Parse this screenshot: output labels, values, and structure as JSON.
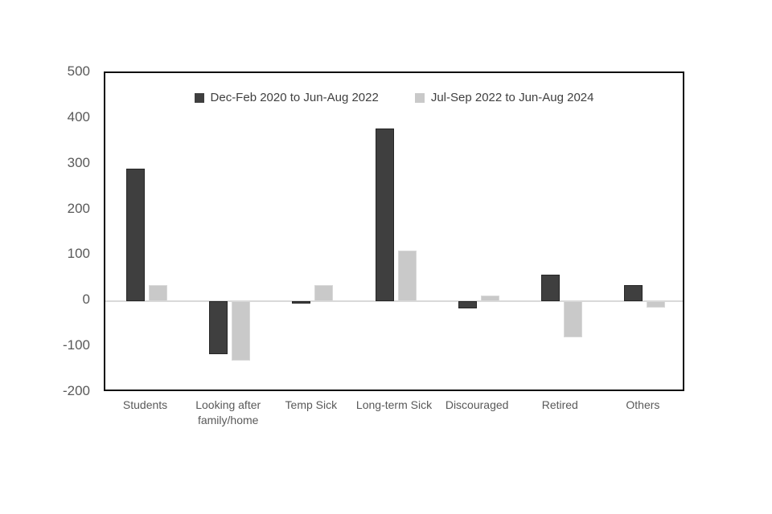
{
  "chart_data": {
    "type": "bar",
    "title": "",
    "xlabel": "",
    "ylabel": "",
    "categories": [
      "Students",
      "Looking after family/home",
      "Temp Sick",
      "Long-term Sick",
      "Discouraged",
      "Retired",
      "Others"
    ],
    "series": [
      {
        "name": "Dec-Feb 2020 to Jun-Aug 2022",
        "color": "#3f3f3f",
        "values": [
          290,
          -115,
          -5,
          378,
          -15,
          58,
          35
        ]
      },
      {
        "name": "Jul-Sep 2022 to Jun-Aug 2024",
        "color": "#c9c9c9",
        "values": [
          35,
          -130,
          35,
          112,
          12,
          -78,
          -13
        ]
      }
    ],
    "ylim": [
      -200,
      500
    ],
    "yticks": [
      500,
      400,
      300,
      200,
      100,
      0,
      -100,
      -200
    ],
    "grid": false,
    "zero_line_color": "#d9d9d9",
    "legend_position": "top-center",
    "plot_border_color": "#0d0d0d",
    "axis_text_color": "#595959",
    "background_color": "#ffffff"
  }
}
